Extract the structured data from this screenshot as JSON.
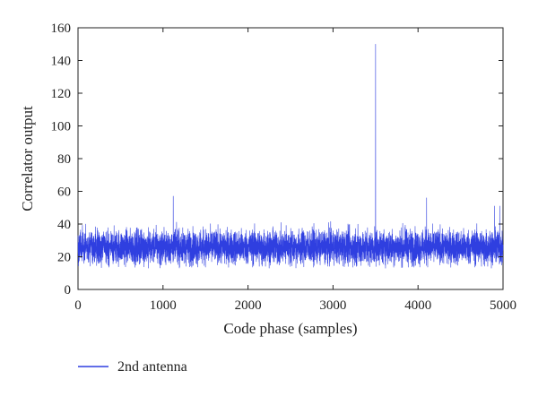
{
  "chart_data": {
    "type": "line",
    "xlabel": "Code phase (samples)",
    "ylabel": "Correlator output",
    "xlim": [
      0,
      5000
    ],
    "ylim": [
      0,
      160
    ],
    "x_ticks": [
      0,
      1000,
      2000,
      3000,
      4000,
      5000
    ],
    "y_ticks": [
      0,
      20,
      40,
      60,
      80,
      100,
      120,
      140,
      160
    ],
    "grid": false,
    "legend_position": "bottom-left",
    "series": [
      {
        "name": "2nd antenna",
        "color": "#2f3fe0",
        "n_samples": 5000,
        "noise_mean": 26,
        "noise_min": 13,
        "noise_max": 52,
        "peaks": [
          {
            "x": 1120,
            "y": 57
          },
          {
            "x": 3500,
            "y": 150
          },
          {
            "x": 4100,
            "y": 56
          },
          {
            "x": 4900,
            "y": 51
          },
          {
            "x": 4960,
            "y": 51
          }
        ]
      }
    ]
  }
}
